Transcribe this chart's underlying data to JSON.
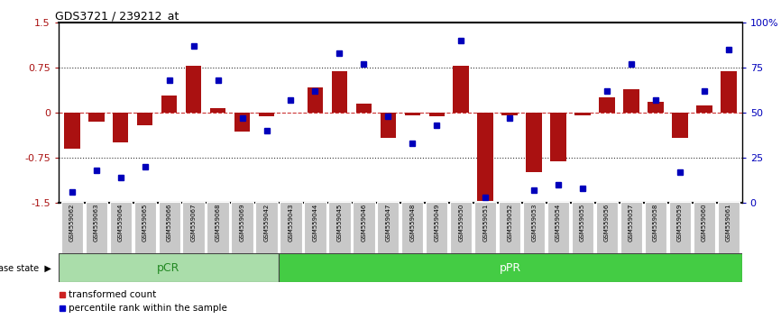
{
  "title": "GDS3721 / 239212_at",
  "samples": [
    "GSM559062",
    "GSM559063",
    "GSM559064",
    "GSM559065",
    "GSM559066",
    "GSM559067",
    "GSM559068",
    "GSM559069",
    "GSM559042",
    "GSM559043",
    "GSM559044",
    "GSM559045",
    "GSM559046",
    "GSM559047",
    "GSM559048",
    "GSM559049",
    "GSM559050",
    "GSM559051",
    "GSM559052",
    "GSM559053",
    "GSM559054",
    "GSM559055",
    "GSM559056",
    "GSM559057",
    "GSM559058",
    "GSM559059",
    "GSM559060",
    "GSM559061"
  ],
  "bar_values": [
    -0.6,
    -0.15,
    -0.5,
    -0.22,
    0.28,
    0.78,
    0.07,
    -0.32,
    -0.07,
    0.0,
    0.42,
    0.68,
    0.15,
    -0.42,
    -0.05,
    -0.07,
    0.78,
    -1.48,
    -0.05,
    -1.0,
    -0.82,
    -0.05,
    0.25,
    0.38,
    0.18,
    -0.42,
    0.12,
    0.68
  ],
  "percentile_values": [
    6,
    18,
    14,
    20,
    68,
    87,
    68,
    47,
    40,
    57,
    62,
    83,
    77,
    48,
    33,
    43,
    90,
    3,
    47,
    7,
    10,
    8,
    62,
    77,
    57,
    17,
    62,
    85
  ],
  "pcr_count": 9,
  "ylim": [
    -1.5,
    1.5
  ],
  "yticks_left": [
    -1.5,
    -0.75,
    0.0,
    0.75,
    1.5
  ],
  "ytick_labels_left": [
    "-1.5",
    "-0.75",
    "0",
    "0.75",
    "1.5"
  ],
  "ytick_labels_right": [
    "0",
    "25",
    "50",
    "75",
    "100%"
  ],
  "bar_color": "#AA1111",
  "dot_color": "#0000BB",
  "hline0_color": "#CC3333",
  "hline_dotted_color": "#333333",
  "pcr_color": "#AADDAA",
  "ppr_color": "#44CC44",
  "pcr_text_color": "#228822",
  "ppr_text_color": "#ffffff",
  "legend_bar_color": "#CC2222",
  "legend_dot_color": "#0000CC",
  "legend_items": [
    "transformed count",
    "percentile rank within the sample"
  ],
  "disease_state_label": "disease state",
  "tick_bg_color": "#C8C8C8",
  "title_fontsize": 9,
  "bar_fontsize": 8,
  "label_fontsize": 7
}
